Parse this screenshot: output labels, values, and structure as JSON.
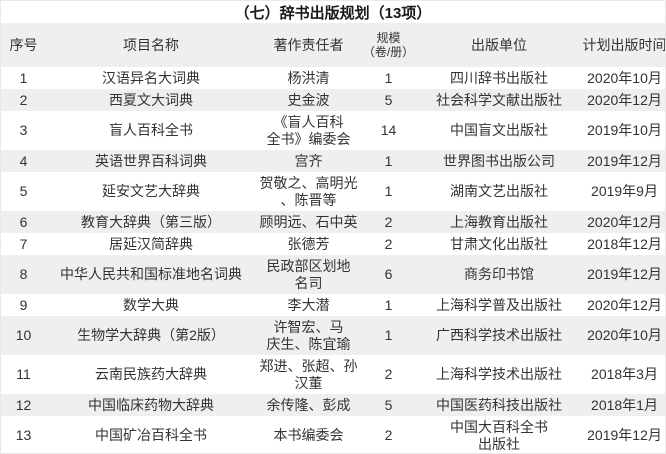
{
  "title": "（七）辞书出版规划（13项）",
  "table": {
    "headers": {
      "index": "序号",
      "name": "项目名称",
      "author": "著作责任者",
      "scale_line1": "规模",
      "scale_line2": "（卷/册）",
      "publisher": "出版单位",
      "date": "计划出版时间"
    },
    "rows": [
      {
        "index": "1",
        "name": "汉语异名大词典",
        "author": "杨洪清",
        "scale": "1",
        "publisher": "四川辞书出版社",
        "date": "2020年10月"
      },
      {
        "index": "2",
        "name": "西夏文大词典",
        "author": "史金波",
        "scale": "5",
        "publisher": "社会科学文献出版社",
        "date": "2020年12月"
      },
      {
        "index": "3",
        "name": "盲人百科全书",
        "author": "《盲人百科\n全书》编委会",
        "scale": "14",
        "publisher": "中国盲文出版社",
        "date": "2019年10月"
      },
      {
        "index": "4",
        "name": "英语世界百科词典",
        "author": "宫齐",
        "scale": "1",
        "publisher": "世界图书出版公司",
        "date": "2019年12月"
      },
      {
        "index": "5",
        "name": "延安文艺大辞典",
        "author": "贺敬之、高明光\n、陈晋等",
        "scale": "1",
        "publisher": "湖南文艺出版社",
        "date": "2019年9月"
      },
      {
        "index": "6",
        "name": "教育大辞典（第三版）",
        "author": "顾明远、石中英",
        "scale": "2",
        "publisher": "上海教育出版社",
        "date": "2020年12月"
      },
      {
        "index": "7",
        "name": "居延汉简辞典",
        "author": "张德芳",
        "scale": "2",
        "publisher": "甘肃文化出版社",
        "date": "2018年12月"
      },
      {
        "index": "8",
        "name": "中华人民共和国标准地名词典",
        "author": "民政部区划地\n名司",
        "scale": "6",
        "publisher": "商务印书馆",
        "date": "2019年12月"
      },
      {
        "index": "9",
        "name": "数学大典",
        "author": "李大潜",
        "scale": "1",
        "publisher": "上海科学普及出版社",
        "date": "2020年12月"
      },
      {
        "index": "10",
        "name": "生物学大辞典（第2版）",
        "author": "许智宏、马\n庆生、陈宜瑜",
        "scale": "1",
        "publisher": "广西科学技术出版社",
        "date": "2020年10月"
      },
      {
        "index": "11",
        "name": "云南民族药大辞典",
        "author": "郑进、张超、孙\n汉董",
        "scale": "2",
        "publisher": "上海科学技术出版社",
        "date": "2018年3月"
      },
      {
        "index": "12",
        "name": "中国临床药物大辞典",
        "author": "余传隆、彭成",
        "scale": "5",
        "publisher": "中国医药科技出版社",
        "date": "2018年1月"
      },
      {
        "index": "13",
        "name": "中国矿冶百科全书",
        "author": "本书编委会",
        "scale": "2",
        "publisher": "中国大百科全书\n出版社",
        "date": "2019年12月"
      }
    ]
  },
  "colors": {
    "stripe": "#efefef",
    "header_bg": "#efefef",
    "text": "#333333",
    "title_text": "#1a1a1a",
    "border": "#e9e9e9"
  }
}
